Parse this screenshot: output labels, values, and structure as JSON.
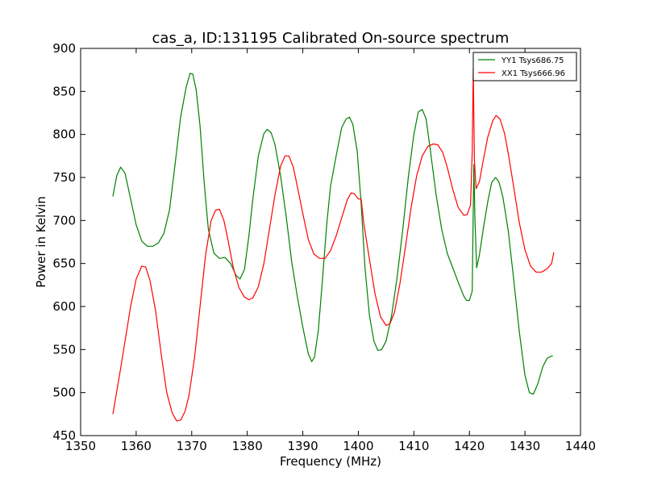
{
  "chart_data": {
    "type": "line",
    "title": "cas_a, ID:131195 Calibrated On-source spectrum",
    "xlabel": "Frequency (MHz)",
    "ylabel": "Power in Kelvin",
    "xlim": [
      1350,
      1440
    ],
    "ylim": [
      450,
      900
    ],
    "xticks": [
      1350,
      1360,
      1370,
      1380,
      1390,
      1400,
      1410,
      1420,
      1430,
      1440
    ],
    "yticks": [
      450,
      500,
      550,
      600,
      650,
      700,
      750,
      800,
      850,
      900
    ],
    "grid": false,
    "legend_position": "top-right",
    "series": [
      {
        "name": "YY1 Tsys686.75",
        "color": "#008000",
        "points": [
          [
            1355.8,
            728
          ],
          [
            1356.5,
            752
          ],
          [
            1357.2,
            762
          ],
          [
            1358.0,
            755
          ],
          [
            1359.0,
            725
          ],
          [
            1360.0,
            695
          ],
          [
            1361.0,
            676
          ],
          [
            1362.0,
            670
          ],
          [
            1363.0,
            670
          ],
          [
            1364.0,
            674
          ],
          [
            1365.0,
            685
          ],
          [
            1366.0,
            712
          ],
          [
            1367.0,
            765
          ],
          [
            1368.0,
            820
          ],
          [
            1369.0,
            855
          ],
          [
            1369.7,
            871
          ],
          [
            1370.2,
            870
          ],
          [
            1370.8,
            852
          ],
          [
            1371.5,
            810
          ],
          [
            1372.3,
            740
          ],
          [
            1373.0,
            690
          ],
          [
            1374.0,
            662
          ],
          [
            1375.0,
            656
          ],
          [
            1376.0,
            657
          ],
          [
            1377.0,
            650
          ],
          [
            1378.0,
            636
          ],
          [
            1378.7,
            632
          ],
          [
            1379.5,
            643
          ],
          [
            1380.3,
            682
          ],
          [
            1381.0,
            725
          ],
          [
            1382.0,
            775
          ],
          [
            1383.0,
            801
          ],
          [
            1383.6,
            806
          ],
          [
            1384.3,
            802
          ],
          [
            1385.0,
            788
          ],
          [
            1386.0,
            752
          ],
          [
            1387.0,
            705
          ],
          [
            1388.0,
            652
          ],
          [
            1389.0,
            612
          ],
          [
            1390.0,
            576
          ],
          [
            1391.0,
            545
          ],
          [
            1391.6,
            536
          ],
          [
            1392.1,
            541
          ],
          [
            1392.8,
            572
          ],
          [
            1393.5,
            628
          ],
          [
            1394.3,
            695
          ],
          [
            1395.0,
            740
          ],
          [
            1396.0,
            775
          ],
          [
            1397.0,
            808
          ],
          [
            1397.8,
            818
          ],
          [
            1398.4,
            820
          ],
          [
            1399.0,
            812
          ],
          [
            1399.8,
            780
          ],
          [
            1400.5,
            720
          ],
          [
            1401.2,
            645
          ],
          [
            1402.0,
            590
          ],
          [
            1402.8,
            560
          ],
          [
            1403.5,
            549
          ],
          [
            1404.2,
            550
          ],
          [
            1405.0,
            560
          ],
          [
            1406.0,
            590
          ],
          [
            1407.0,
            635
          ],
          [
            1408.0,
            690
          ],
          [
            1409.0,
            750
          ],
          [
            1410.0,
            800
          ],
          [
            1410.8,
            826
          ],
          [
            1411.5,
            829
          ],
          [
            1412.2,
            818
          ],
          [
            1413.0,
            780
          ],
          [
            1414.0,
            730
          ],
          [
            1415.0,
            690
          ],
          [
            1416.0,
            662
          ],
          [
            1417.0,
            645
          ],
          [
            1418.0,
            628
          ],
          [
            1419.0,
            612
          ],
          [
            1419.5,
            607
          ],
          [
            1420.0,
            607
          ],
          [
            1420.5,
            618
          ],
          [
            1420.8,
            765
          ],
          [
            1421.0,
            700
          ],
          [
            1421.3,
            645
          ],
          [
            1421.8,
            660
          ],
          [
            1422.5,
            690
          ],
          [
            1423.3,
            722
          ],
          [
            1424.0,
            744
          ],
          [
            1424.7,
            750
          ],
          [
            1425.3,
            745
          ],
          [
            1426.0,
            728
          ],
          [
            1427.0,
            688
          ],
          [
            1428.0,
            630
          ],
          [
            1429.0,
            570
          ],
          [
            1430.0,
            520
          ],
          [
            1430.8,
            500
          ],
          [
            1431.5,
            498
          ],
          [
            1432.3,
            510
          ],
          [
            1433.2,
            530
          ],
          [
            1434.0,
            540
          ],
          [
            1435.0,
            543
          ]
        ]
      },
      {
        "name": "XX1 Tsys666.96",
        "color": "#ff0000",
        "points": [
          [
            1355.8,
            475
          ],
          [
            1357.0,
            520
          ],
          [
            1358.0,
            560
          ],
          [
            1359.0,
            600
          ],
          [
            1360.0,
            632
          ],
          [
            1361.0,
            647
          ],
          [
            1361.7,
            646
          ],
          [
            1362.5,
            630
          ],
          [
            1363.5,
            595
          ],
          [
            1364.5,
            545
          ],
          [
            1365.5,
            500
          ],
          [
            1366.5,
            476
          ],
          [
            1367.3,
            467
          ],
          [
            1368.0,
            468
          ],
          [
            1368.8,
            478
          ],
          [
            1369.5,
            496
          ],
          [
            1370.5,
            540
          ],
          [
            1371.5,
            600
          ],
          [
            1372.5,
            660
          ],
          [
            1373.5,
            700
          ],
          [
            1374.3,
            712
          ],
          [
            1375.0,
            713
          ],
          [
            1375.8,
            700
          ],
          [
            1376.5,
            678
          ],
          [
            1377.5,
            645
          ],
          [
            1378.5,
            622
          ],
          [
            1379.5,
            611
          ],
          [
            1380.3,
            608
          ],
          [
            1381.0,
            610
          ],
          [
            1382.0,
            623
          ],
          [
            1383.0,
            650
          ],
          [
            1384.0,
            690
          ],
          [
            1385.0,
            730
          ],
          [
            1386.0,
            763
          ],
          [
            1386.8,
            775
          ],
          [
            1387.5,
            775
          ],
          [
            1388.3,
            762
          ],
          [
            1389.0,
            740
          ],
          [
            1390.0,
            708
          ],
          [
            1391.0,
            678
          ],
          [
            1392.0,
            661
          ],
          [
            1393.0,
            656
          ],
          [
            1394.0,
            656
          ],
          [
            1395.0,
            665
          ],
          [
            1396.0,
            682
          ],
          [
            1397.0,
            703
          ],
          [
            1398.0,
            724
          ],
          [
            1398.7,
            732
          ],
          [
            1399.3,
            731
          ],
          [
            1400.0,
            725
          ],
          [
            1400.5,
            725
          ],
          [
            1401.0,
            696
          ],
          [
            1402.0,
            655
          ],
          [
            1403.0,
            615
          ],
          [
            1404.0,
            588
          ],
          [
            1405.0,
            578
          ],
          [
            1405.7,
            580
          ],
          [
            1406.5,
            593
          ],
          [
            1407.5,
            627
          ],
          [
            1408.5,
            670
          ],
          [
            1409.5,
            715
          ],
          [
            1410.5,
            752
          ],
          [
            1411.5,
            775
          ],
          [
            1412.5,
            786
          ],
          [
            1413.5,
            789
          ],
          [
            1414.3,
            788
          ],
          [
            1415.2,
            779
          ],
          [
            1416.0,
            762
          ],
          [
            1417.0,
            736
          ],
          [
            1418.0,
            715
          ],
          [
            1419.0,
            706
          ],
          [
            1419.6,
            707
          ],
          [
            1420.2,
            718
          ],
          [
            1420.5,
            780
          ],
          [
            1420.7,
            877
          ],
          [
            1420.9,
            770
          ],
          [
            1421.2,
            737
          ],
          [
            1421.8,
            745
          ],
          [
            1422.5,
            770
          ],
          [
            1423.3,
            797
          ],
          [
            1424.2,
            816
          ],
          [
            1424.8,
            822
          ],
          [
            1425.5,
            818
          ],
          [
            1426.3,
            802
          ],
          [
            1427.0,
            778
          ],
          [
            1428.0,
            738
          ],
          [
            1429.0,
            697
          ],
          [
            1430.0,
            666
          ],
          [
            1431.0,
            647
          ],
          [
            1432.0,
            640
          ],
          [
            1433.0,
            640
          ],
          [
            1434.0,
            644
          ],
          [
            1434.8,
            650
          ],
          [
            1435.2,
            663
          ]
        ]
      }
    ]
  }
}
